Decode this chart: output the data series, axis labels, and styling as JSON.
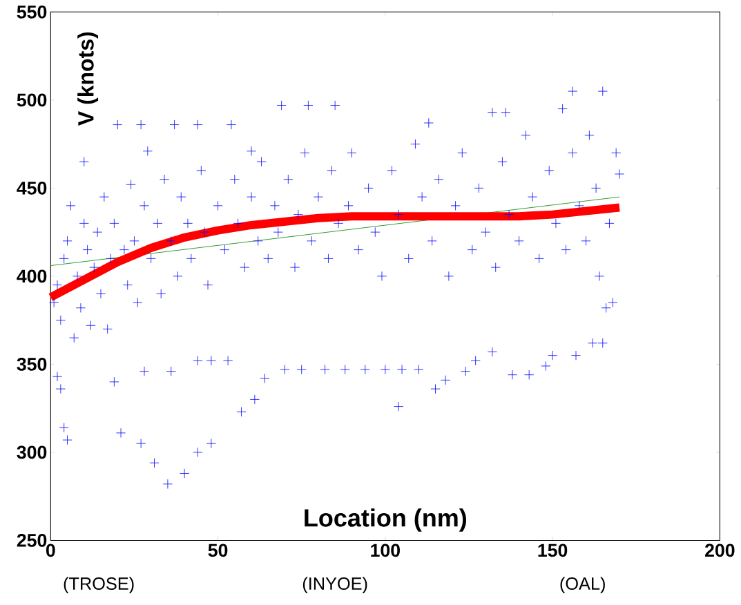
{
  "chart_data": {
    "type": "scatter",
    "xlabel": "Location (nm)",
    "ylabel": "V (knots)",
    "xlim": [
      0,
      200
    ],
    "xticks": [
      0,
      50,
      100,
      150,
      200
    ],
    "ylim": [
      250,
      550
    ],
    "yticks": [
      250,
      300,
      350,
      400,
      450,
      500,
      550
    ],
    "annotations": [
      "(TROSE)",
      "(INYOE)",
      "(OAL)"
    ],
    "series": [
      {
        "color": "#0000ff",
        "marker": "cross",
        "x": [
          2,
          3,
          4,
          5,
          19,
          21,
          27,
          31,
          35,
          40,
          44,
          48,
          28,
          36,
          44,
          48,
          53,
          57,
          61,
          64,
          70,
          75,
          82,
          88,
          94,
          100,
          105,
          110,
          115,
          118,
          124,
          127,
          132,
          138,
          143,
          148,
          150,
          157,
          162,
          165,
          104,
          166,
          168,
          20,
          27,
          37,
          44,
          54,
          69,
          77,
          85,
          156,
          165,
          153,
          132,
          136,
          113,
          10,
          29,
          60,
          1,
          2,
          3,
          4,
          5,
          6,
          7,
          8,
          9,
          10,
          11,
          12,
          13,
          14,
          15,
          16,
          17,
          18,
          19,
          22,
          23,
          24,
          25,
          26,
          28,
          30,
          32,
          33,
          34,
          36,
          38,
          39,
          41,
          42,
          45,
          46,
          47,
          50,
          52,
          55,
          56,
          58,
          60,
          62,
          63,
          65,
          67,
          68,
          71,
          73,
          74,
          76,
          78,
          80,
          83,
          84,
          86,
          89,
          90,
          92,
          95,
          97,
          99,
          102,
          104,
          107,
          109,
          111,
          114,
          116,
          119,
          121,
          123,
          126,
          128,
          130,
          133,
          135,
          137,
          140,
          142,
          144,
          146,
          149,
          151,
          154,
          156,
          158,
          160,
          161,
          163,
          164,
          167,
          169,
          170
        ],
        "values": [
          343,
          336,
          314,
          307,
          340,
          311,
          305,
          294,
          282,
          288,
          300,
          305,
          346,
          346,
          352,
          352,
          352,
          323,
          330,
          342,
          347,
          347,
          347,
          347,
          347,
          347,
          347,
          347,
          336,
          341,
          346,
          352,
          357,
          344,
          344,
          349,
          355,
          355,
          362,
          362,
          326,
          382,
          385,
          486,
          486,
          486,
          486,
          486,
          497,
          497,
          497,
          505,
          505,
          495,
          493,
          493,
          487,
          465,
          471,
          471,
          385,
          395,
          375,
          410,
          420,
          440,
          365,
          400,
          382,
          430,
          415,
          372,
          405,
          425,
          390,
          445,
          370,
          410,
          430,
          415,
          395,
          452,
          420,
          385,
          440,
          410,
          430,
          390,
          455,
          420,
          400,
          445,
          430,
          410,
          460,
          425,
          395,
          440,
          415,
          455,
          430,
          405,
          445,
          420,
          465,
          410,
          440,
          425,
          455,
          405,
          435,
          470,
          420,
          445,
          410,
          460,
          430,
          440,
          470,
          415,
          450,
          425,
          400,
          460,
          435,
          410,
          475,
          445,
          420,
          455,
          400,
          440,
          470,
          415,
          450,
          425,
          405,
          465,
          435,
          420,
          480,
          445,
          410,
          460,
          430,
          415,
          470,
          440,
          420,
          480,
          450,
          400,
          430,
          470,
          458
        ]
      },
      {
        "type": "line",
        "color": "#008000",
        "marker": "none",
        "line_style": "solid",
        "x": [
          0,
          170
        ],
        "values": [
          406,
          445
        ]
      },
      {
        "type": "line",
        "color": "#ff0000",
        "marker": "none",
        "line_style": "solid",
        "x": [
          0,
          10,
          20,
          30,
          40,
          50,
          60,
          70,
          80,
          90,
          100,
          120,
          140,
          150,
          160,
          170
        ],
        "values": [
          388,
          398,
          408,
          416,
          422,
          426,
          429,
          431,
          433,
          434,
          434,
          434,
          434,
          435,
          437,
          439
        ]
      }
    ]
  }
}
